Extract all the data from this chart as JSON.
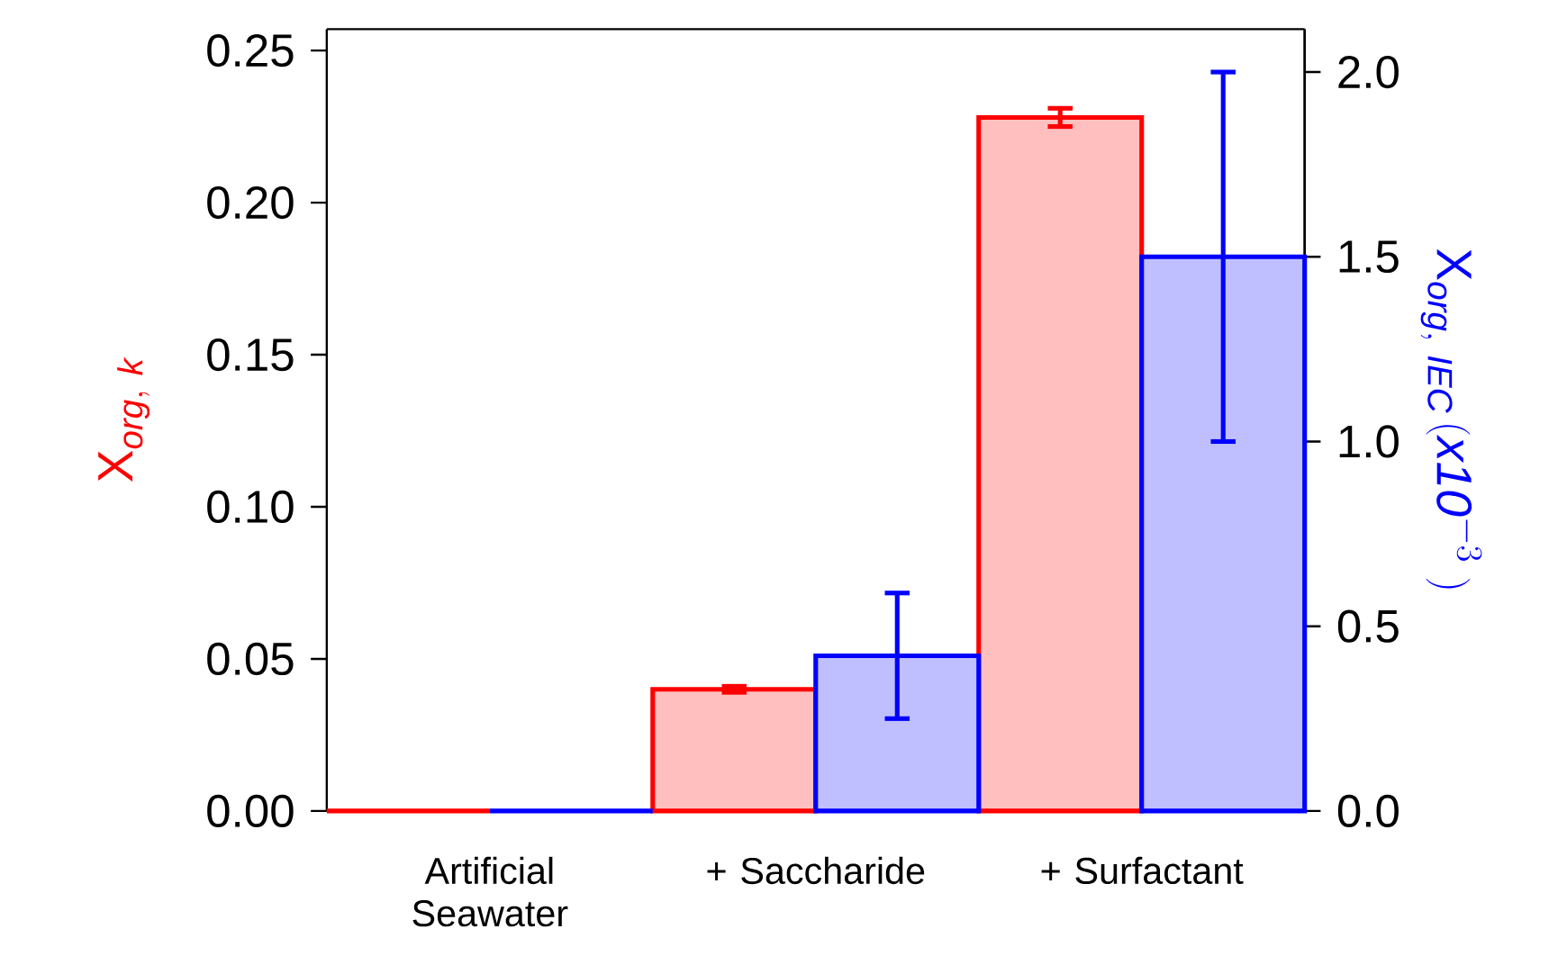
{
  "chart_data": {
    "type": "bar",
    "categories": [
      "Artificial Seawater",
      "+ Saccharide",
      "+ Surfactant"
    ],
    "series": [
      {
        "color": "#ff0000",
        "values": [
          0,
          0.04,
          0.228
        ],
        "errors": [
          null,
          0.001,
          0.003
        ]
      },
      {
        "color": "#0000ff",
        "values": [
          0,
          0.42,
          1.5
        ],
        "errors": [
          null,
          0.17,
          0.5
        ],
        "axis": "y2"
      }
    ],
    "ylabel": "\\mathrm{X}_{\\mathit{org,\\ k}}",
    "y2label": "\\mathrm{X}_{\\mathit{org,\\ IEC}}\\,(\\mathit{x10}^{-3}\\ )",
    "ylim": [
      0,
      0.257
    ],
    "yticks": [
      {
        "value": 0,
        "label": "0.00"
      },
      0.05,
      {
        "value": 0.1,
        "label": "0.10"
      },
      0.15,
      {
        "value": 0.2,
        "label": "0.20"
      },
      0.25
    ],
    "y2lim": [
      0,
      2.116
    ],
    "y2ticks": [
      {
        "value": 0,
        "label": "0.0"
      },
      0.5,
      {
        "value": 1,
        "label": "1.0"
      },
      1.5,
      {
        "value": 2,
        "label": "2.0"
      }
    ]
  }
}
